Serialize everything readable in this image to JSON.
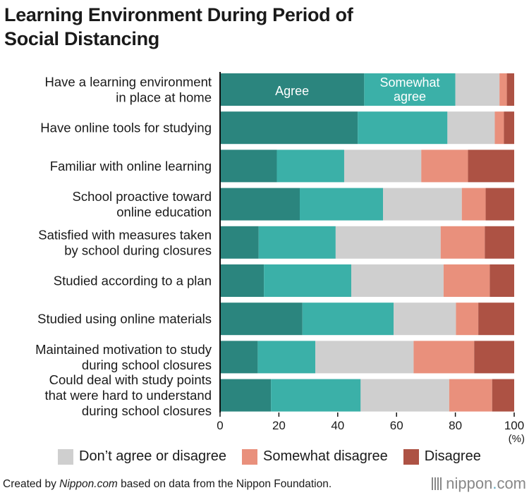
{
  "title_lines": [
    "Learning Environment During Period of",
    "Social Distancing"
  ],
  "colors": {
    "agree": "#2b857e",
    "somewhat_agree": "#3bb0a8",
    "neutral": "#cfcfcf",
    "somewhat_disagree": "#e9907c",
    "disagree": "#ad5244"
  },
  "in_bar_labels": {
    "agree": "Agree",
    "somewhat_agree_lines": [
      "Somewhat",
      "agree"
    ]
  },
  "legend": {
    "neutral": "Don’t agree or disagree",
    "somewhat_disagree": "Somewhat disagree",
    "disagree": "Disagree"
  },
  "footer": {
    "credit_prefix": "Created by ",
    "credit_source": "Nippon.com",
    "credit_suffix": " based on data from the Nippon Foundation.",
    "brand_main": "nippon",
    "brand_dot": ".",
    "brand_tld": "com"
  },
  "chart_data": {
    "type": "bar",
    "orientation": "horizontal",
    "stacked": true,
    "categories": [
      [
        "Have a learning environment",
        "in place at home"
      ],
      [
        "Have online tools for studying"
      ],
      [
        "Familiar with online learning"
      ],
      [
        "School proactive toward",
        "online education"
      ],
      [
        "Satisfied with measures taken",
        "by school during closures"
      ],
      [
        "Studied according to a plan"
      ],
      [
        "Studied using online materials"
      ],
      [
        "Maintained motivation to study",
        "during school closures"
      ],
      [
        "Could deal with study points",
        "that were hard to understand",
        "during school closures"
      ]
    ],
    "series": [
      {
        "name": "Agree",
        "color_key": "agree",
        "values": [
          49,
          46.8,
          19.3,
          27.1,
          13.1,
          14.9,
          28,
          12.8,
          17.3
        ]
      },
      {
        "name": "Somewhat agree",
        "color_key": "somewhat_agree",
        "values": [
          31,
          30.5,
          22.9,
          28.3,
          26.2,
          29.7,
          31,
          19.6,
          30.5
        ]
      },
      {
        "name": "Don’t agree or disagree",
        "color_key": "neutral",
        "values": [
          15,
          16.1,
          26.2,
          26.8,
          35.7,
          31.4,
          21.2,
          33.4,
          30.1
        ]
      },
      {
        "name": "Somewhat disagree",
        "color_key": "somewhat_disagree",
        "values": [
          2.5,
          3.1,
          15.9,
          8.1,
          15,
          15.7,
          7.6,
          20.6,
          14.6
        ]
      },
      {
        "name": "Disagree",
        "color_key": "disagree",
        "values": [
          2.5,
          3.5,
          15.7,
          9.7,
          10,
          8.3,
          12.2,
          13.6,
          7.5
        ]
      }
    ],
    "xlim": [
      0,
      100
    ],
    "xticks": [
      0,
      20,
      40,
      60,
      80,
      100
    ],
    "x_unit": "(%)",
    "legend_position": "bottom"
  }
}
